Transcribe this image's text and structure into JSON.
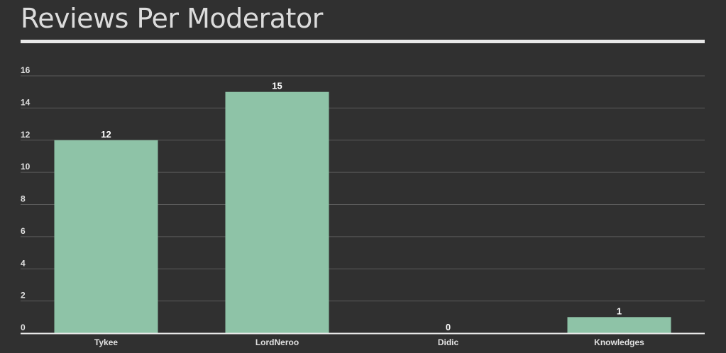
{
  "title": "Reviews Per Moderator",
  "colors": {
    "background": "#303030",
    "bar": "#8ec3a7",
    "grid": "#5a5a5a",
    "axis": "#e8e8e8",
    "text": "#e0e0e0"
  },
  "chart_data": {
    "type": "bar",
    "categories": [
      "Tykee",
      "LordNeroo",
      "Didic",
      "Knowledges"
    ],
    "values": [
      12,
      15,
      0,
      1
    ],
    "ylim": [
      0,
      16
    ],
    "yticks": [
      "0",
      "2",
      "4",
      "6",
      "8",
      "10",
      "12",
      "14",
      "16"
    ],
    "data_labels": [
      "12",
      "15",
      "0",
      "1"
    ],
    "grid": true,
    "legend": "none"
  }
}
